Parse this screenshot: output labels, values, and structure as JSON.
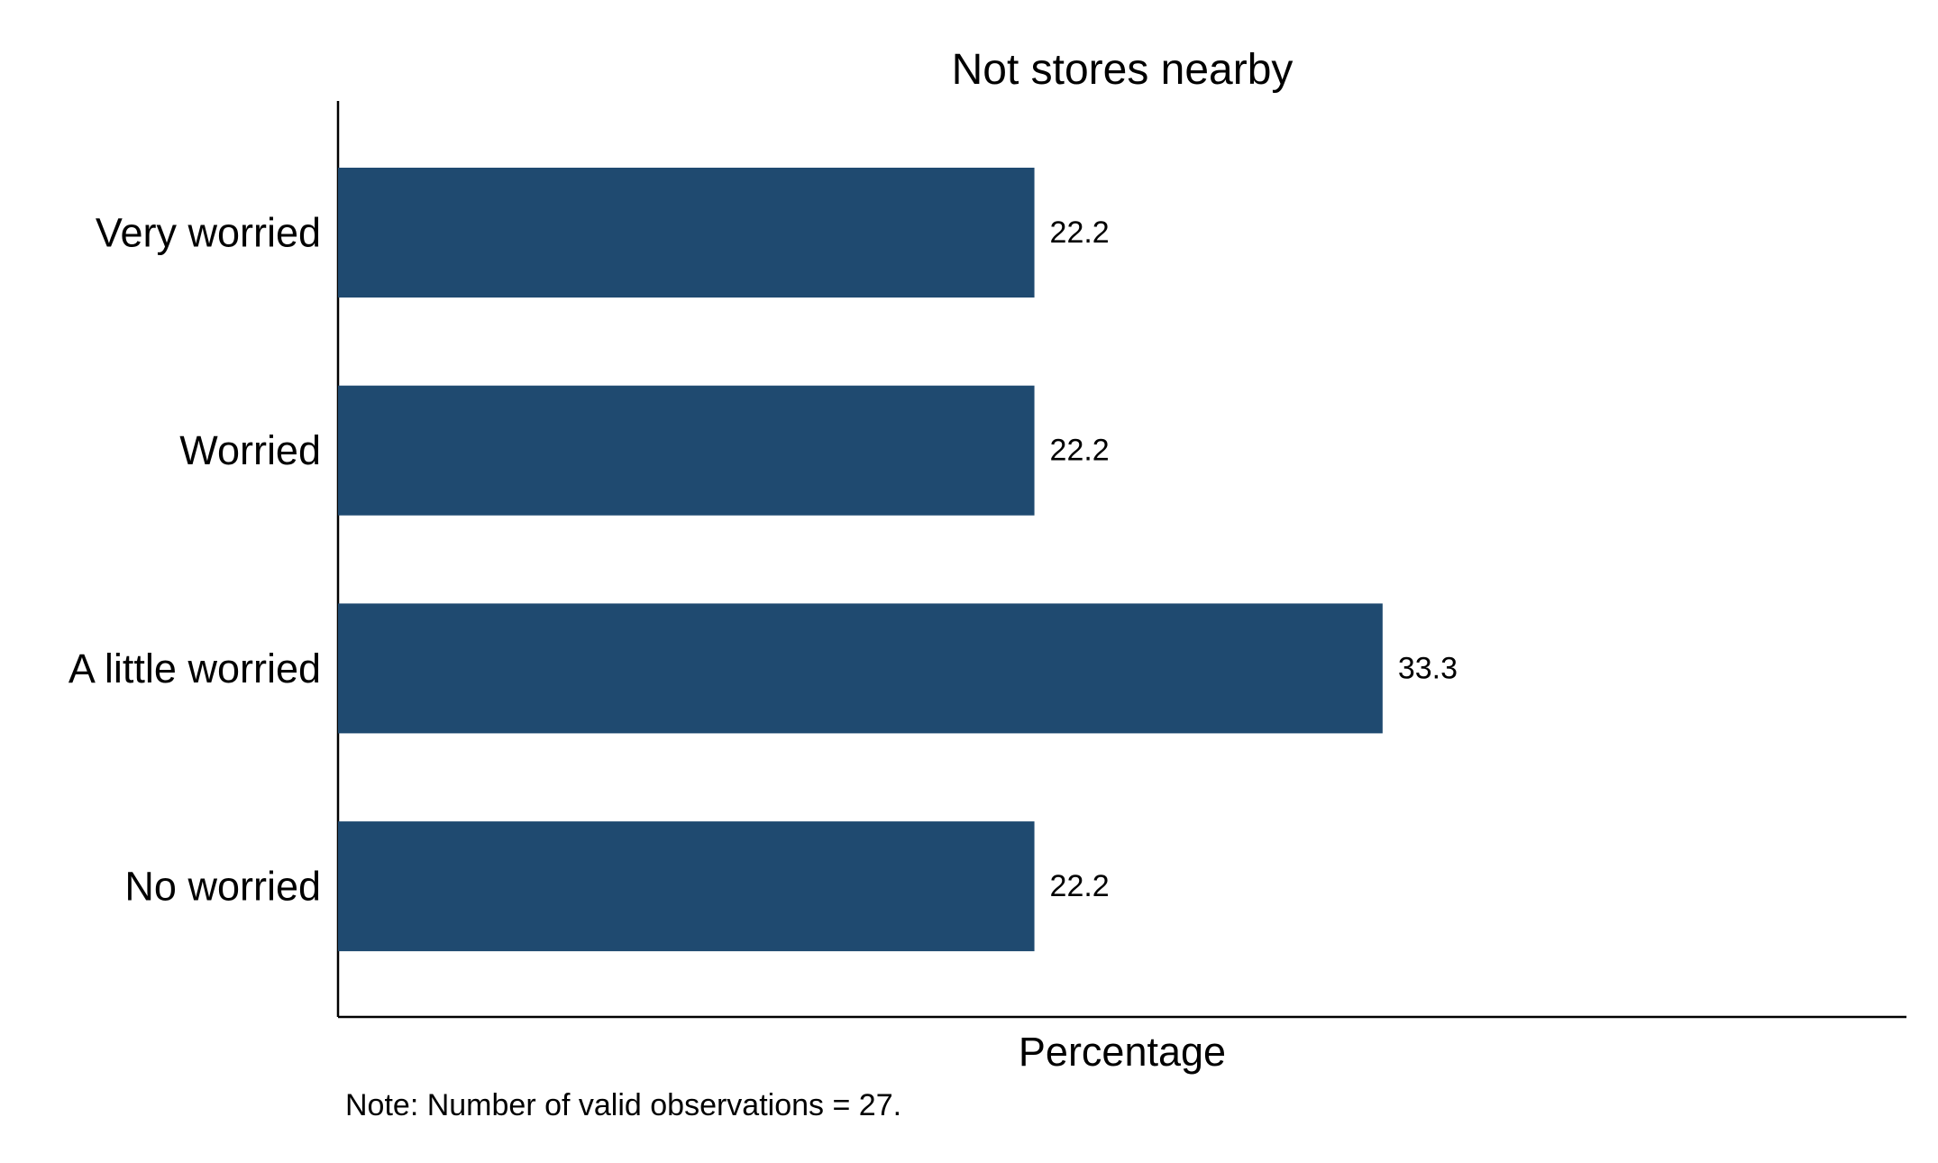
{
  "chart_data": {
    "type": "bar",
    "orientation": "horizontal",
    "title": "Not stores nearby",
    "xlabel": "Percentage",
    "ylabel": "",
    "categories": [
      "Very worried",
      "Worried",
      "A little worried",
      "No worried"
    ],
    "values": [
      22.2,
      22.2,
      33.3,
      22.2
    ],
    "value_labels": [
      "22.2",
      "22.2",
      "33.3",
      "22.2"
    ],
    "xlim": [
      0,
      50
    ],
    "grid": false,
    "legend": "none",
    "bar_color": "#1f4a70",
    "note": "Note: Number of valid observations = 27."
  }
}
